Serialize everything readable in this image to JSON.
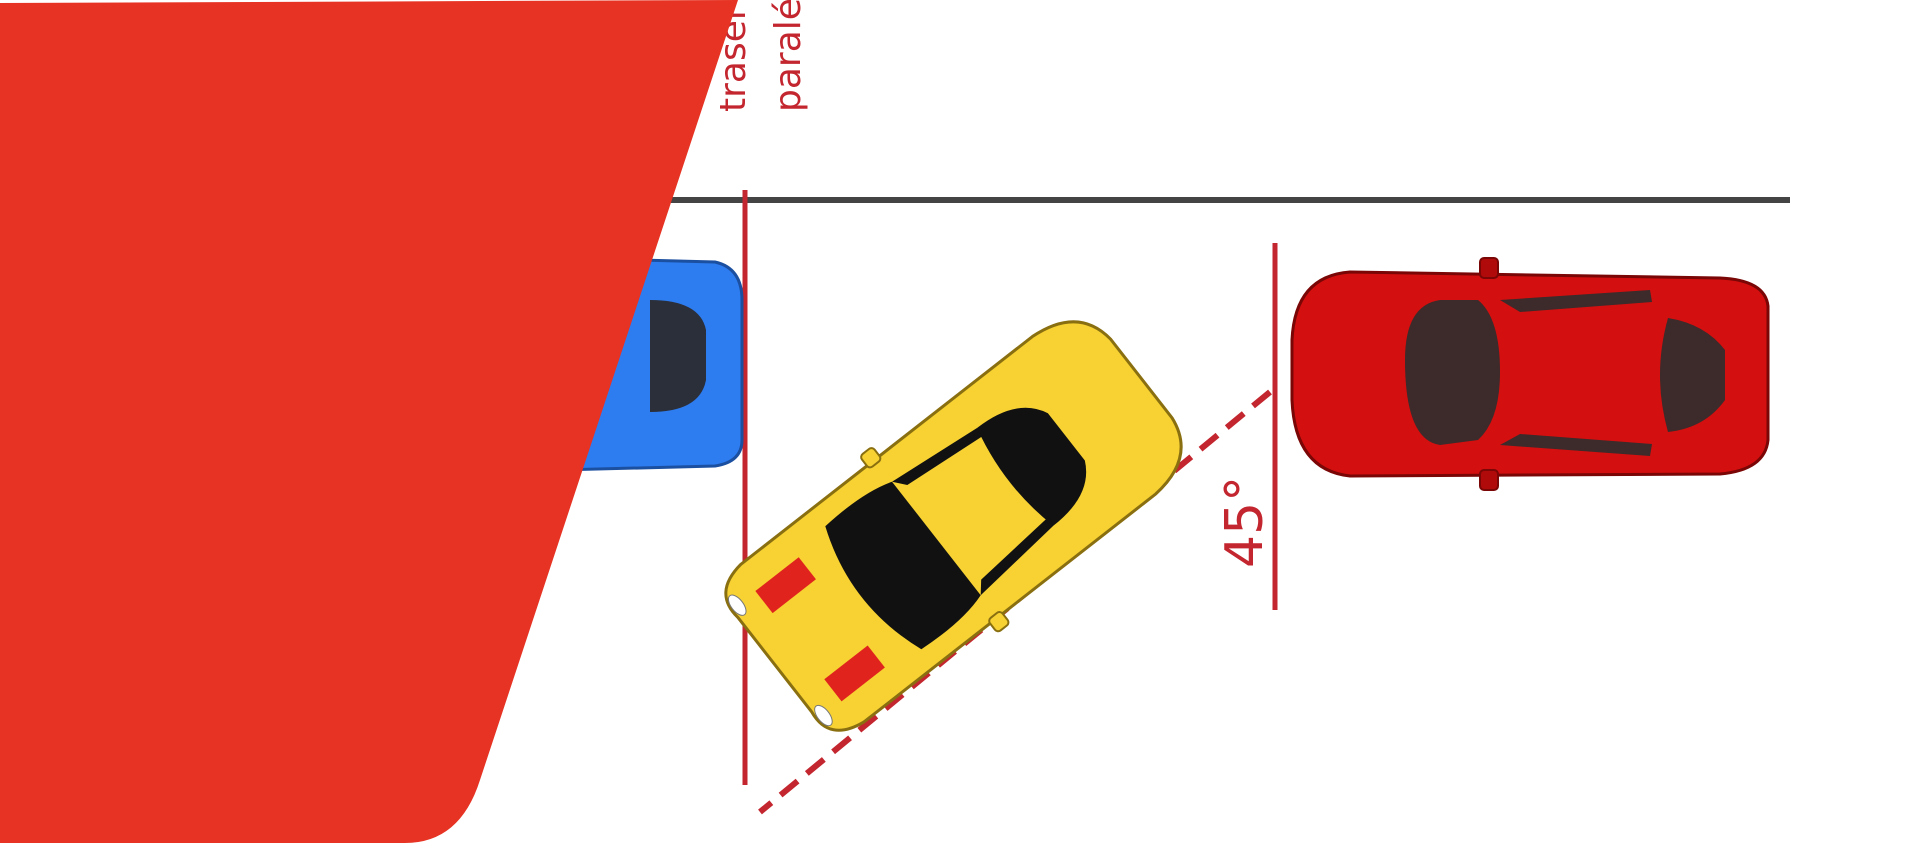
{
  "colors": {
    "background": "#ffffff",
    "accent_red": "#e63323",
    "guide_red": "#c3262e",
    "curb": "#444444",
    "car_yellow": "#f7d232",
    "car_red": "#d40f0f",
    "car_blue": "#2d7cf0",
    "glass": "#2b2f3a"
  },
  "labels": {
    "label_line1": "traser",
    "label_line2": "paralé",
    "angle": "45°"
  },
  "icons": {
    "blue_car": "car-icon",
    "yellow_car": "car-icon",
    "red_car": "car-icon"
  }
}
